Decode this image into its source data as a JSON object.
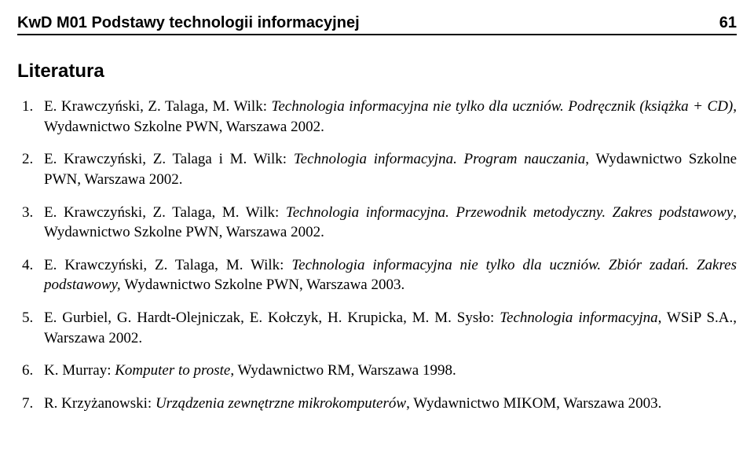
{
  "header": {
    "title": "KwD M01 Podstawy technologii informacyjnej",
    "page_number": "61"
  },
  "section_heading": "Literatura",
  "references": [
    {
      "authors": "E. Krawczyński, Z. Talaga, M. Wilk: ",
      "title_italic": "Technologia informacyjna nie tylko dla uczniów. Podręcznik (książka + CD), ",
      "rest": "Wydawnictwo Szkolne PWN, Warszawa 2002."
    },
    {
      "authors": "E. Krawczyński, Z. Talaga i M. Wilk: ",
      "title_italic": "Technologia informacyjna. Program nauczania",
      "rest": ", Wydawnictwo Szkolne PWN, Warszawa 2002."
    },
    {
      "authors": "E. Krawczyński, Z. Talaga, M. Wilk: ",
      "title_italic": "Technologia informacyjna. Przewodnik metodyczny. Zakres podstawowy",
      "rest": ", Wydawnictwo Szkolne PWN, Warszawa 2002."
    },
    {
      "authors": "E. Krawczyński, Z. Talaga, M. Wilk: ",
      "title_italic": "Technologia informacyjna nie tylko dla uczniów. Zbiór zadań. Zakres podstawowy, ",
      "rest": "Wydawnictwo Szkolne PWN, Warszawa 2003."
    },
    {
      "authors": "E. Gurbiel, G. Hardt-Olejniczak, E. Kołczyk, H. Krupicka, M. M. Sysło: ",
      "title_italic": "Technologia informacyjna",
      "rest": ", WSiP S.A., Warszawa 2002."
    },
    {
      "authors": "K. Murray: ",
      "title_italic": "Komputer to proste",
      "rest": ", Wydawnictwo RM, Warszawa 1998."
    },
    {
      "authors": "R. Krzyżanowski: ",
      "title_italic": "Urządzenia zewnętrzne mikrokomputerów",
      "rest": ", Wydawnictwo MIKOM, Warszawa 2003."
    }
  ]
}
